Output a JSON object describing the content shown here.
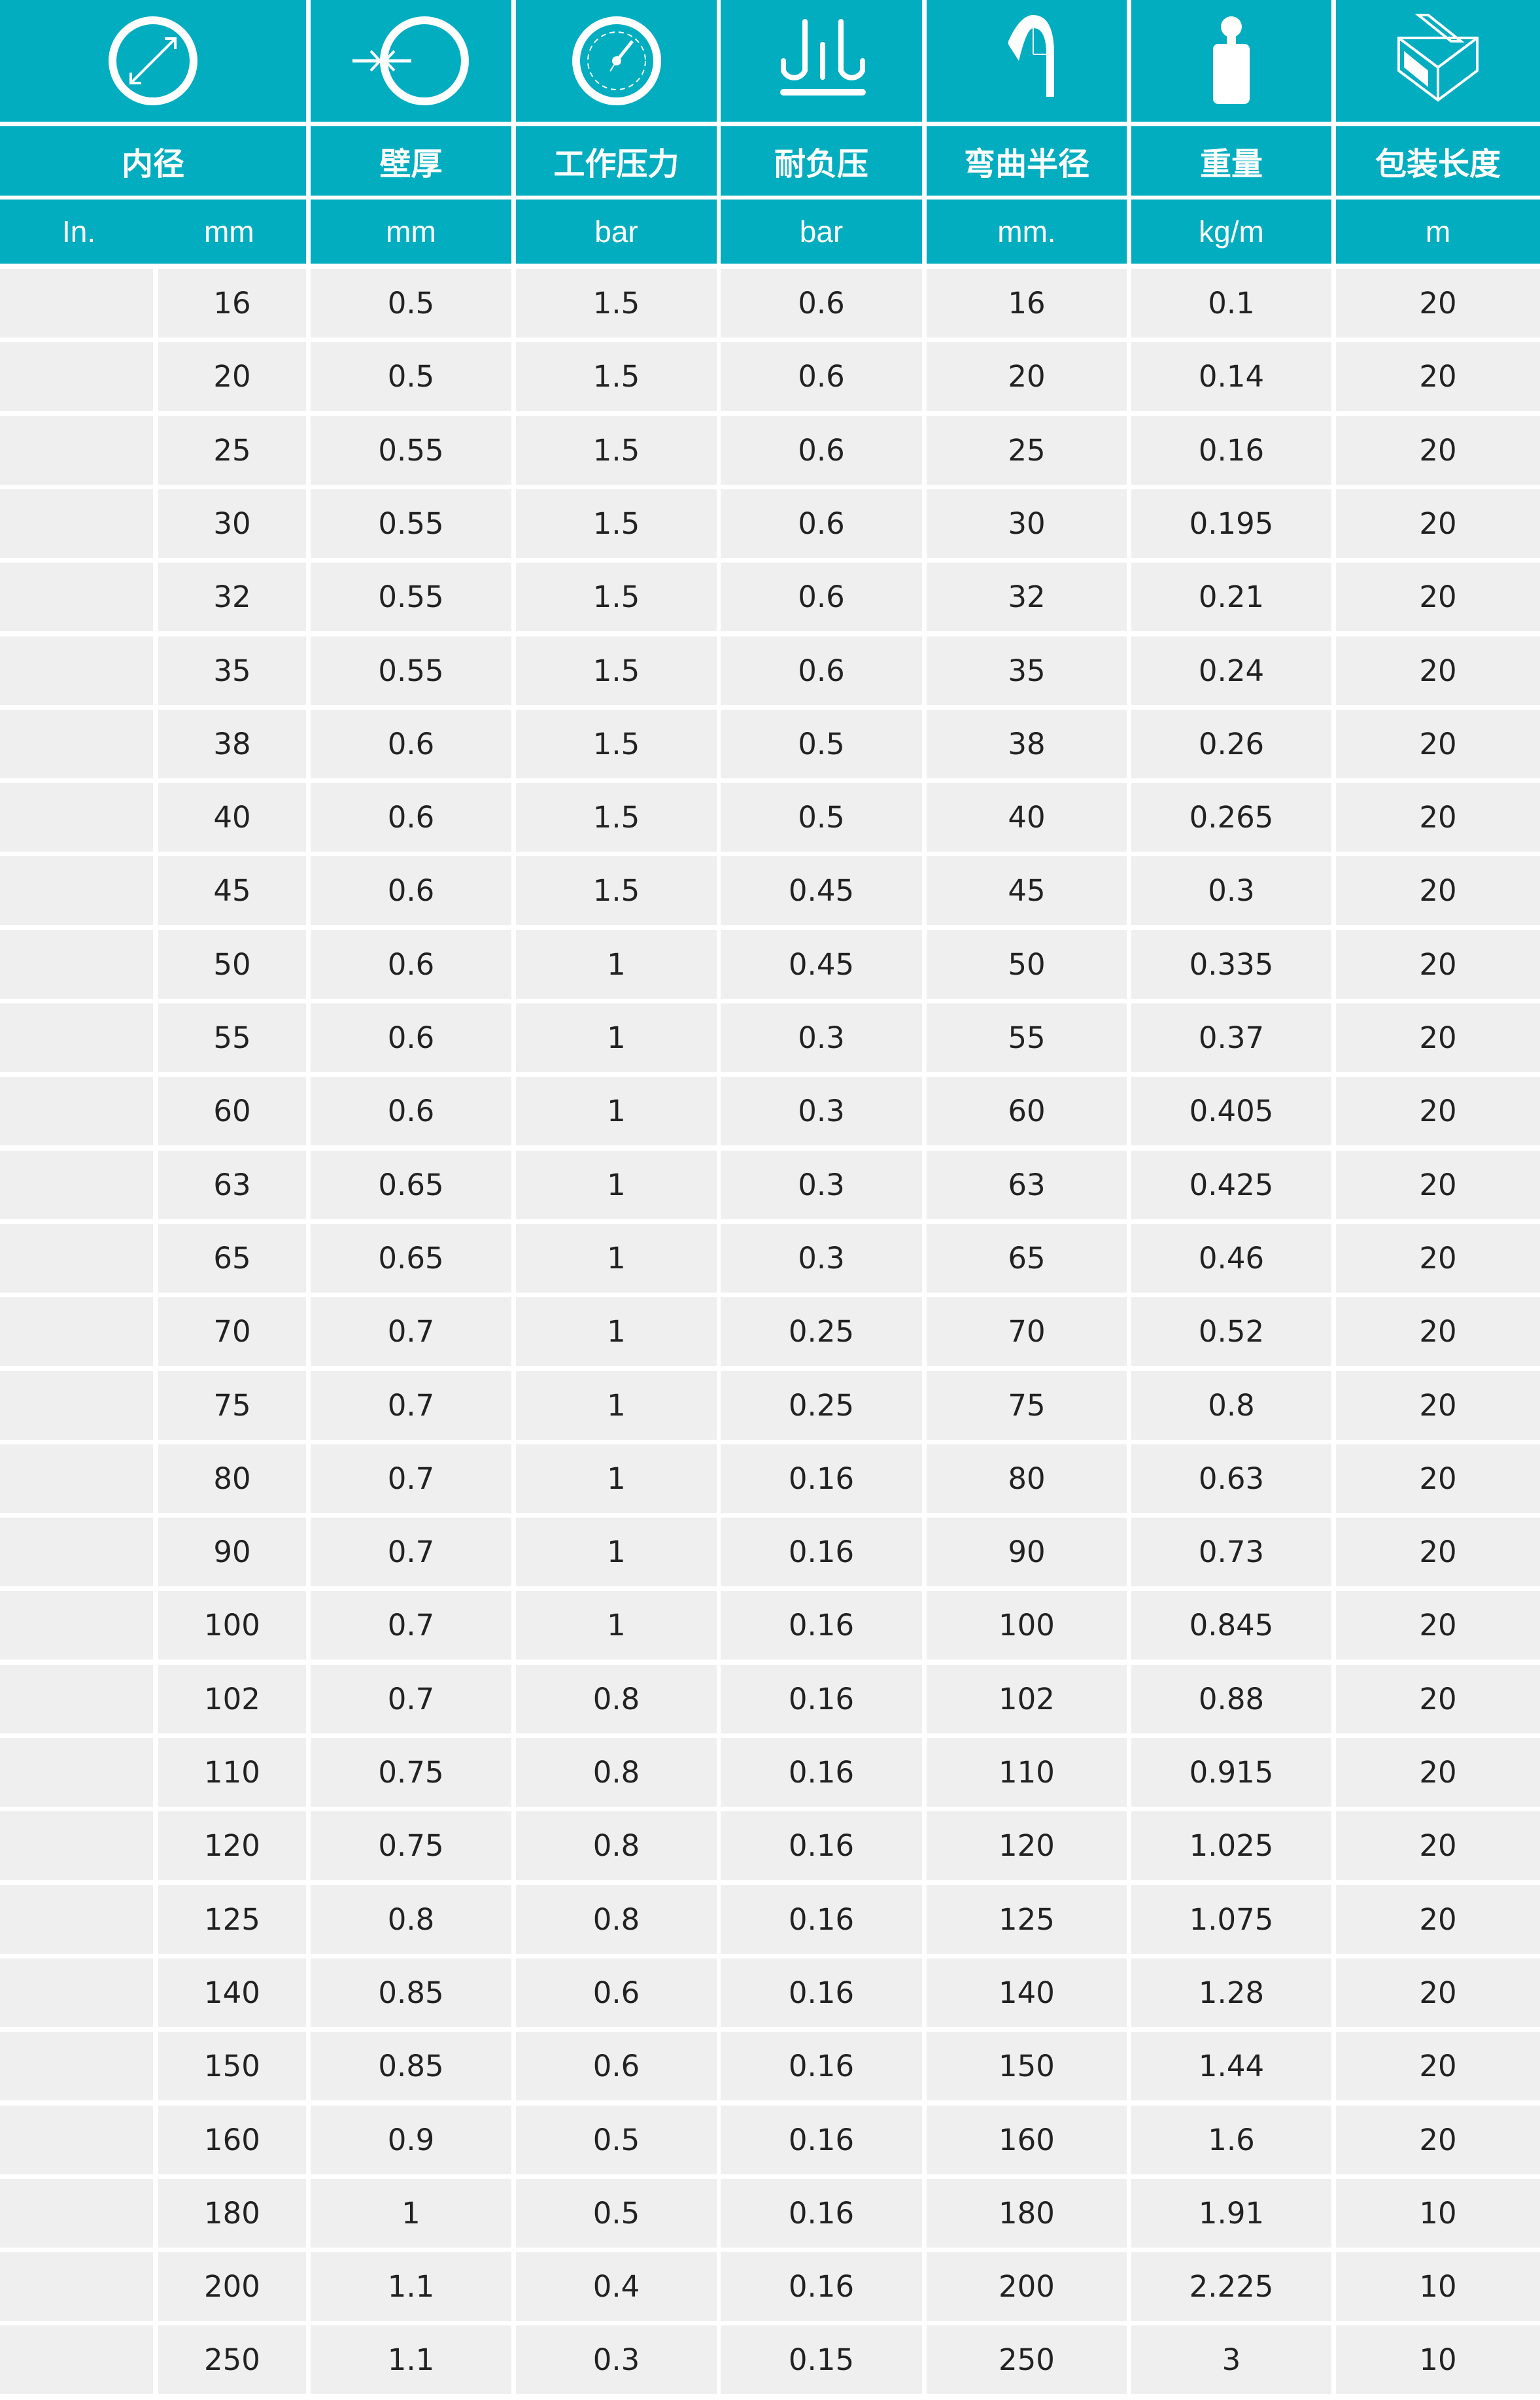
{
  "colors": {
    "header": "#02adc0",
    "row": "#efefef",
    "text": "#222222"
  },
  "columns": [
    {
      "icon": "inner-diameter-icon",
      "label": "内径",
      "units": [
        "In.",
        "mm"
      ]
    },
    {
      "icon": "wall-thickness-icon",
      "label": "壁厚",
      "units": [
        "mm"
      ]
    },
    {
      "icon": "pressure-gauge-icon",
      "label": "工作压力",
      "units": [
        "bar"
      ]
    },
    {
      "icon": "vacuum-pressure-icon",
      "label": "耐负压",
      "units": [
        "bar"
      ]
    },
    {
      "icon": "bend-radius-icon",
      "label": "弯曲半径",
      "units": [
        "mm."
      ]
    },
    {
      "icon": "weight-icon",
      "label": "重量",
      "units": [
        "kg/m"
      ]
    },
    {
      "icon": "package-box-icon",
      "label": "包装长度",
      "units": [
        "m"
      ]
    }
  ],
  "rows": [
    [
      "",
      "16",
      "0.5",
      "1.5",
      "0.6",
      "16",
      "0.1",
      "20"
    ],
    [
      "",
      "20",
      "0.5",
      "1.5",
      "0.6",
      "20",
      "0.14",
      "20"
    ],
    [
      "",
      "25",
      "0.55",
      "1.5",
      "0.6",
      "25",
      "0.16",
      "20"
    ],
    [
      "",
      "30",
      "0.55",
      "1.5",
      "0.6",
      "30",
      "0.195",
      "20"
    ],
    [
      "",
      "32",
      "0.55",
      "1.5",
      "0.6",
      "32",
      "0.21",
      "20"
    ],
    [
      "",
      "35",
      "0.55",
      "1.5",
      "0.6",
      "35",
      "0.24",
      "20"
    ],
    [
      "",
      "38",
      "0.6",
      "1.5",
      "0.5",
      "38",
      "0.26",
      "20"
    ],
    [
      "",
      "40",
      "0.6",
      "1.5",
      "0.5",
      "40",
      "0.265",
      "20"
    ],
    [
      "",
      "45",
      "0.6",
      "1.5",
      "0.45",
      "45",
      "0.3",
      "20"
    ],
    [
      "",
      "50",
      "0.6",
      "1",
      "0.45",
      "50",
      "0.335",
      "20"
    ],
    [
      "",
      "55",
      "0.6",
      "1",
      "0.3",
      "55",
      "0.37",
      "20"
    ],
    [
      "",
      "60",
      "0.6",
      "1",
      "0.3",
      "60",
      "0.405",
      "20"
    ],
    [
      "",
      "63",
      "0.65",
      "1",
      "0.3",
      "63",
      "0.425",
      "20"
    ],
    [
      "",
      "65",
      "0.65",
      "1",
      "0.3",
      "65",
      "0.46",
      "20"
    ],
    [
      "",
      "70",
      "0.7",
      "1",
      "0.25",
      "70",
      "0.52",
      "20"
    ],
    [
      "",
      "75",
      "0.7",
      "1",
      "0.25",
      "75",
      "0.8",
      "20"
    ],
    [
      "",
      "80",
      "0.7",
      "1",
      "0.16",
      "80",
      "0.63",
      "20"
    ],
    [
      "",
      "90",
      "0.7",
      "1",
      "0.16",
      "90",
      "0.73",
      "20"
    ],
    [
      "",
      "100",
      "0.7",
      "1",
      "0.16",
      "100",
      "0.845",
      "20"
    ],
    [
      "",
      "102",
      "0.7",
      "0.8",
      "0.16",
      "102",
      "0.88",
      "20"
    ],
    [
      "",
      "110",
      "0.75",
      "0.8",
      "0.16",
      "110",
      "0.915",
      "20"
    ],
    [
      "",
      "120",
      "0.75",
      "0.8",
      "0.16",
      "120",
      "1.025",
      "20"
    ],
    [
      "",
      "125",
      "0.8",
      "0.8",
      "0.16",
      "125",
      "1.075",
      "20"
    ],
    [
      "",
      "140",
      "0.85",
      "0.6",
      "0.16",
      "140",
      "1.28",
      "20"
    ],
    [
      "",
      "150",
      "0.85",
      "0.6",
      "0.16",
      "150",
      "1.44",
      "20"
    ],
    [
      "",
      "160",
      "0.9",
      "0.5",
      "0.16",
      "160",
      "1.6",
      "20"
    ],
    [
      "",
      "180",
      "1",
      "0.5",
      "0.16",
      "180",
      "1.91",
      "10"
    ],
    [
      "",
      "200",
      "1.1",
      "0.4",
      "0.16",
      "200",
      "2.225",
      "10"
    ],
    [
      "",
      "250",
      "1.1",
      "0.3",
      "0.15",
      "250",
      "3",
      "10"
    ]
  ]
}
